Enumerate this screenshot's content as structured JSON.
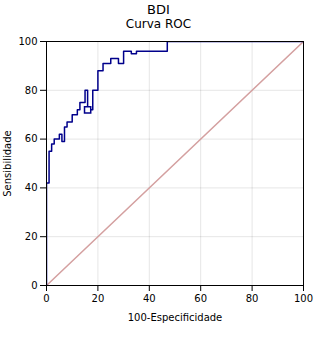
{
  "chart_data": {
    "type": "line",
    "title": "BDI",
    "subtitle": "Curva ROC",
    "xlabel": "100-Especificidade",
    "ylabel": "Sensibilidade",
    "series": [
      {
        "type": "line",
        "color": "#D4A0A0",
        "x": [
          0,
          100
        ],
        "values": [
          0,
          100
        ]
      },
      {
        "type": "line",
        "color": "#00008B",
        "x": [
          0,
          0,
          1,
          1,
          2,
          2,
          3,
          3,
          5,
          5,
          6,
          6,
          7,
          7,
          8,
          8,
          10,
          10,
          12,
          12,
          13,
          13,
          15,
          15,
          16,
          16,
          18,
          18,
          20,
          20,
          22,
          22,
          25,
          25,
          28,
          28,
          30,
          30,
          33,
          33,
          35,
          35,
          40,
          40,
          45,
          45,
          47,
          47,
          60,
          60,
          78,
          78,
          100
        ],
        "values": [
          0,
          42,
          42,
          55,
          55,
          58,
          58,
          60,
          60,
          62,
          62,
          59,
          59,
          65,
          65,
          67,
          67,
          70,
          70,
          72,
          72,
          75,
          75,
          80,
          80,
          72,
          72,
          80,
          80,
          88,
          88,
          91,
          91,
          93,
          93,
          91,
          91,
          96,
          96,
          95,
          95,
          96,
          96,
          96,
          96,
          96,
          96,
          100,
          100,
          100,
          100,
          100,
          100
        ]
      },
      {
        "type": "scatter",
        "marker": "square",
        "color": "#00008B",
        "x": [
          16
        ],
        "values": [
          72
        ]
      }
    ],
    "xlim": [
      0,
      100
    ],
    "ylim": [
      0,
      100
    ],
    "xticks": [
      0,
      20,
      40,
      60,
      80,
      100
    ],
    "yticks": [
      0,
      20,
      40,
      60,
      80,
      100
    ],
    "grid": true
  }
}
